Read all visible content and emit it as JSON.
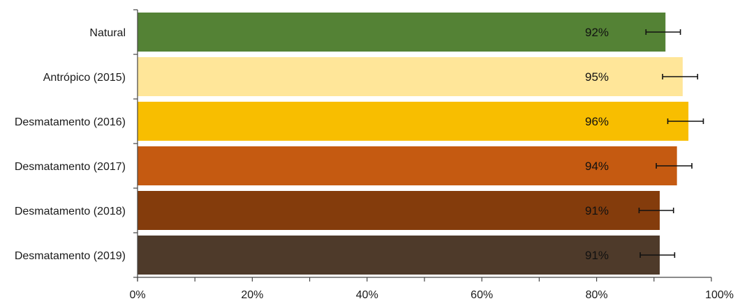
{
  "chart_data": {
    "type": "bar",
    "orientation": "horizontal",
    "title": "",
    "xlabel": "",
    "ylabel": "",
    "xlim": [
      0,
      100
    ],
    "xticks": [
      0,
      20,
      40,
      60,
      80,
      100
    ],
    "xtick_labels": [
      "0%",
      "20%",
      "40%",
      "60%",
      "80%",
      "100%"
    ],
    "grid": false,
    "legend": "none",
    "categories": [
      "Natural",
      "Antrópico (2015)",
      "Desmatamento (2016)",
      "Desmatamento (2017)",
      "Desmatamento (2018)",
      "Desmatamento (2019)"
    ],
    "values": [
      92,
      95,
      96,
      94,
      91,
      91
    ],
    "value_labels": [
      "92%",
      "95%",
      "96%",
      "94%",
      "91%",
      "91%"
    ],
    "error_low": [
      88.6,
      91.5,
      92.4,
      90.4,
      87.4,
      87.6
    ],
    "error_high": [
      94.6,
      97.6,
      98.6,
      96.6,
      93.4,
      93.6
    ],
    "colors": [
      "#548235",
      "#FFE699",
      "#F8BE00",
      "#C55A11",
      "#843C0C",
      "#4E3A2A"
    ]
  }
}
